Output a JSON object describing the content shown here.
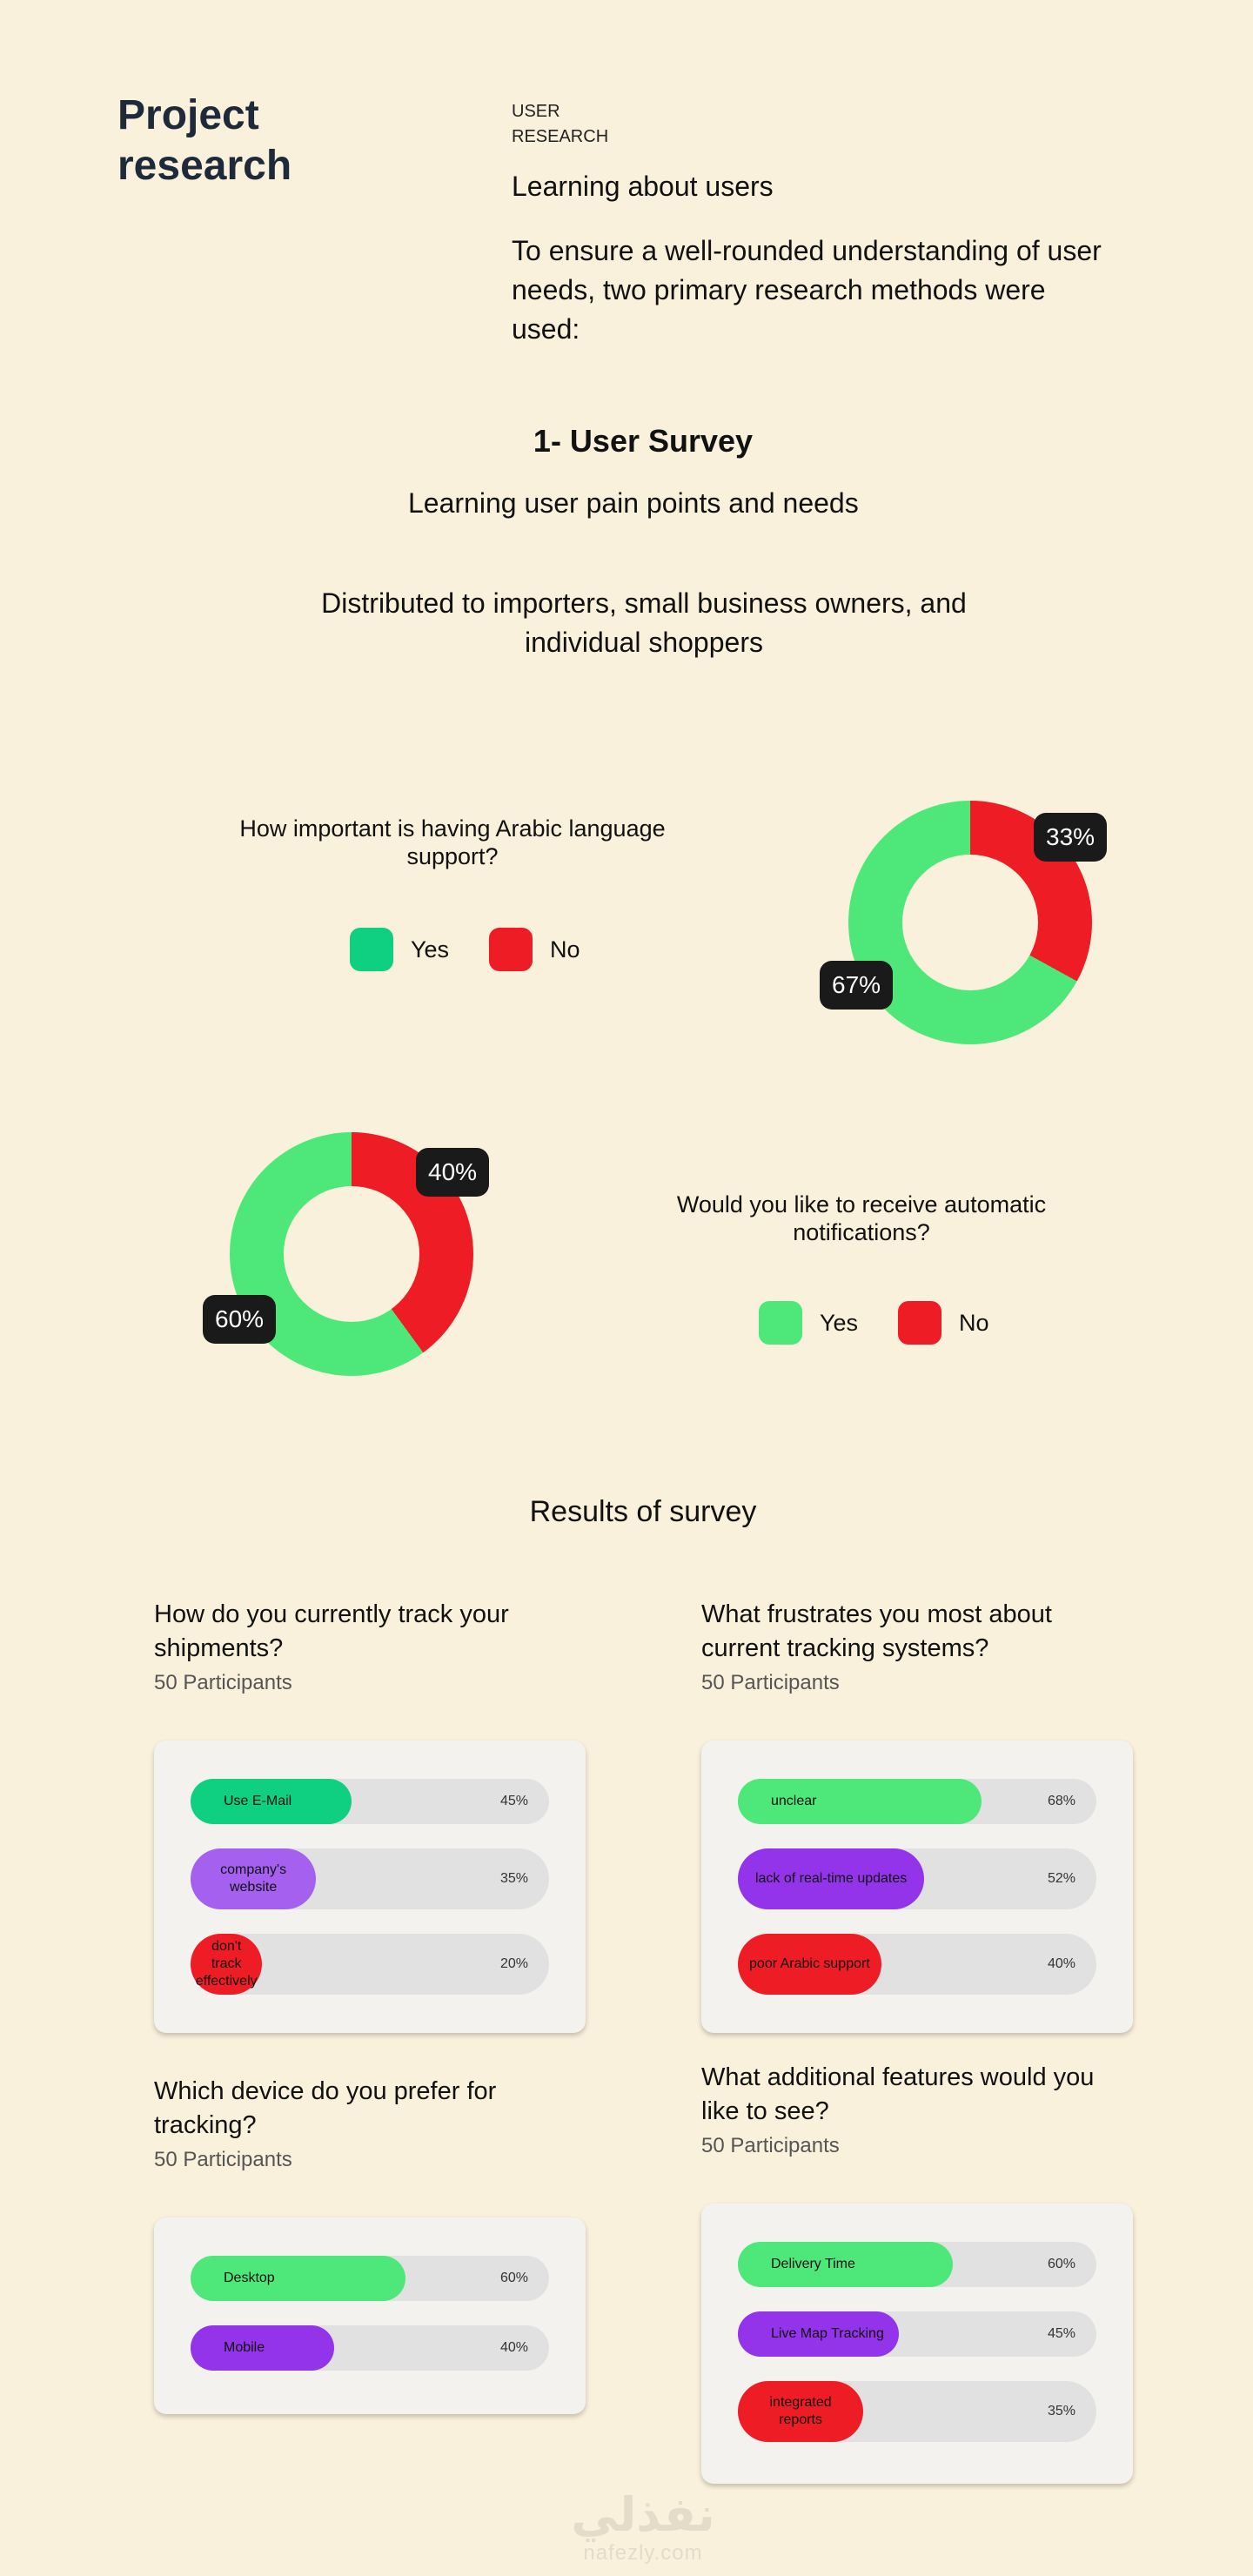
{
  "header": {
    "title": "Project\nresearch",
    "eyebrow": "USER\nRESEARCH",
    "heading": "Learning about users",
    "intro": "To ensure a well-rounded understanding of user needs, two primary research methods were used:"
  },
  "survey": {
    "title": "1- User Survey",
    "subtitle": "Learning user pain points and needs",
    "description": "Distributed to importers, small business owners, and individual shoppers"
  },
  "legend": {
    "yes": "Yes",
    "no": "No"
  },
  "colors": {
    "background": "#FAF1DC",
    "yes_donut": "#4EE87A",
    "yes_swatch_1": "#0FCF80",
    "no": "#EE1C25",
    "purple": "#9333EA",
    "purple_light": "#A560F0",
    "green_bar_dark": "#0FCF80",
    "green_bar": "#4EE87A",
    "track": "#E1E1E1"
  },
  "chart_data": [
    {
      "type": "pie",
      "question": "How important is having Arabic language support?",
      "categories": [
        "Yes",
        "No"
      ],
      "values": [
        67,
        33
      ],
      "labels": [
        "67%",
        "33%"
      ]
    },
    {
      "type": "pie",
      "question": "Would you like to receive automatic notifications?",
      "categories": [
        "Yes",
        "No"
      ],
      "values": [
        60,
        40
      ],
      "labels": [
        "60%",
        "40%"
      ]
    }
  ],
  "results": {
    "title": "Results of survey",
    "polls": [
      {
        "question": "How do you currently track your shipments?",
        "participants": "50 Participants",
        "options": [
          {
            "label": "Use E-Mail",
            "value": 45,
            "pct": "45%",
            "color": "#0FCF80"
          },
          {
            "label": "company's website",
            "value": 35,
            "pct": "35%",
            "color": "#A560F0"
          },
          {
            "label": "don't track effectively",
            "value": 20,
            "pct": "20%",
            "color": "#EE1C25"
          }
        ]
      },
      {
        "question": "What frustrates you most about current tracking systems?",
        "participants": "50 Participants",
        "options": [
          {
            "label": "unclear",
            "value": 68,
            "pct": "68%",
            "color": "#4EE87A"
          },
          {
            "label": "lack of real-time updates",
            "value": 52,
            "pct": "52%",
            "color": "#9333EA"
          },
          {
            "label": "poor Arabic support",
            "value": 40,
            "pct": "40%",
            "color": "#EE1C25"
          }
        ]
      },
      {
        "question": "Which device do you prefer for tracking?",
        "participants": "50 Participants",
        "options": [
          {
            "label": "Desktop",
            "value": 60,
            "pct": "60%",
            "color": "#4EE87A"
          },
          {
            "label": "Mobile",
            "value": 40,
            "pct": "40%",
            "color": "#9333EA"
          }
        ]
      },
      {
        "question": "What additional features would you like to see?",
        "participants": "50 Participants",
        "options": [
          {
            "label": "Delivery Time",
            "value": 60,
            "pct": "60%",
            "color": "#4EE87A"
          },
          {
            "label": "Live Map Tracking",
            "value": 45,
            "pct": "45%",
            "color": "#9333EA"
          },
          {
            "label": "integrated reports",
            "value": 35,
            "pct": "35%",
            "color": "#EE1C25"
          }
        ]
      }
    ]
  },
  "watermark": {
    "arabic": "نفذلي",
    "latin": "nafezly.com"
  }
}
